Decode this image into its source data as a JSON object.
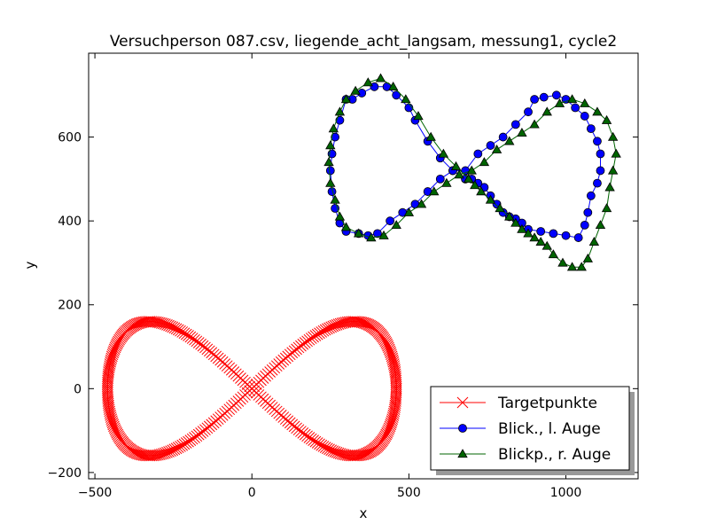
{
  "chart_data": {
    "type": "scatter",
    "title": "Versuchperson 087.csv, liegende_acht_langsam, messung1, cycle2",
    "xlabel": "x",
    "ylabel": "y",
    "xlim": [
      -520,
      1230
    ],
    "ylim": [
      -215,
      800
    ],
    "xticks": [
      -500,
      0,
      500,
      1000
    ],
    "yticks": [
      -200,
      0,
      200,
      400,
      600
    ],
    "grid": false,
    "legend_position": "lower-right",
    "series": [
      {
        "name": "Targetpunkte",
        "color": "#ff0000",
        "marker": "x",
        "parametric": "lemniscate",
        "x_amplitude": 460,
        "y_amplitude": 160,
        "num_points": 400,
        "center": [
          0,
          0
        ]
      },
      {
        "name": "Blick., l. Auge",
        "color": "#0000ff",
        "marker": "circle",
        "points": [
          [
            680,
            500
          ],
          [
            640,
            520
          ],
          [
            600,
            550
          ],
          [
            560,
            590
          ],
          [
            520,
            640
          ],
          [
            500,
            670
          ],
          [
            460,
            700
          ],
          [
            430,
            720
          ],
          [
            390,
            720
          ],
          [
            350,
            705
          ],
          [
            320,
            690
          ],
          [
            300,
            690
          ],
          [
            280,
            640
          ],
          [
            265,
            600
          ],
          [
            255,
            560
          ],
          [
            250,
            520
          ],
          [
            255,
            470
          ],
          [
            265,
            430
          ],
          [
            280,
            395
          ],
          [
            300,
            375
          ],
          [
            340,
            370
          ],
          [
            370,
            365
          ],
          [
            400,
            370
          ],
          [
            440,
            400
          ],
          [
            480,
            420
          ],
          [
            520,
            440
          ],
          [
            560,
            470
          ],
          [
            600,
            500
          ],
          [
            640,
            520
          ],
          [
            680,
            520
          ],
          [
            720,
            560
          ],
          [
            760,
            580
          ],
          [
            800,
            600
          ],
          [
            840,
            630
          ],
          [
            880,
            660
          ],
          [
            900,
            690
          ],
          [
            930,
            695
          ],
          [
            970,
            700
          ],
          [
            1000,
            690
          ],
          [
            1030,
            670
          ],
          [
            1060,
            650
          ],
          [
            1080,
            620
          ],
          [
            1100,
            590
          ],
          [
            1110,
            560
          ],
          [
            1110,
            520
          ],
          [
            1100,
            490
          ],
          [
            1080,
            460
          ],
          [
            1070,
            420
          ],
          [
            1060,
            390
          ],
          [
            1040,
            360
          ],
          [
            1000,
            365
          ],
          [
            960,
            370
          ],
          [
            920,
            375
          ],
          [
            880,
            380
          ],
          [
            860,
            395
          ],
          [
            840,
            405
          ],
          [
            820,
            410
          ],
          [
            800,
            420
          ],
          [
            780,
            440
          ],
          [
            760,
            460
          ],
          [
            740,
            480
          ],
          [
            720,
            490
          ],
          [
            700,
            500
          ],
          [
            680,
            500
          ]
        ]
      },
      {
        "name": "Blickp., r. Auge",
        "color": "#006400",
        "marker": "triangle",
        "points": [
          [
            690,
            500
          ],
          [
            650,
            530
          ],
          [
            610,
            560
          ],
          [
            570,
            600
          ],
          [
            530,
            650
          ],
          [
            490,
            690
          ],
          [
            450,
            720
          ],
          [
            410,
            740
          ],
          [
            370,
            730
          ],
          [
            330,
            710
          ],
          [
            300,
            690
          ],
          [
            280,
            660
          ],
          [
            260,
            620
          ],
          [
            250,
            580
          ],
          [
            245,
            540
          ],
          [
            250,
            490
          ],
          [
            265,
            450
          ],
          [
            280,
            410
          ],
          [
            300,
            385
          ],
          [
            340,
            370
          ],
          [
            380,
            360
          ],
          [
            420,
            365
          ],
          [
            460,
            390
          ],
          [
            500,
            420
          ],
          [
            540,
            440
          ],
          [
            580,
            470
          ],
          [
            620,
            490
          ],
          [
            660,
            510
          ],
          [
            700,
            520
          ],
          [
            740,
            540
          ],
          [
            780,
            570
          ],
          [
            820,
            590
          ],
          [
            860,
            610
          ],
          [
            900,
            630
          ],
          [
            940,
            660
          ],
          [
            980,
            680
          ],
          [
            1020,
            690
          ],
          [
            1060,
            680
          ],
          [
            1100,
            660
          ],
          [
            1130,
            640
          ],
          [
            1150,
            600
          ],
          [
            1160,
            560
          ],
          [
            1150,
            520
          ],
          [
            1140,
            480
          ],
          [
            1130,
            430
          ],
          [
            1110,
            390
          ],
          [
            1090,
            350
          ],
          [
            1070,
            310
          ],
          [
            1050,
            290
          ],
          [
            1020,
            290
          ],
          [
            990,
            300
          ],
          [
            960,
            320
          ],
          [
            940,
            340
          ],
          [
            920,
            350
          ],
          [
            900,
            360
          ],
          [
            880,
            370
          ],
          [
            860,
            380
          ],
          [
            840,
            395
          ],
          [
            820,
            410
          ],
          [
            790,
            430
          ],
          [
            760,
            450
          ],
          [
            730,
            470
          ],
          [
            710,
            485
          ],
          [
            690,
            500
          ]
        ]
      }
    ]
  }
}
